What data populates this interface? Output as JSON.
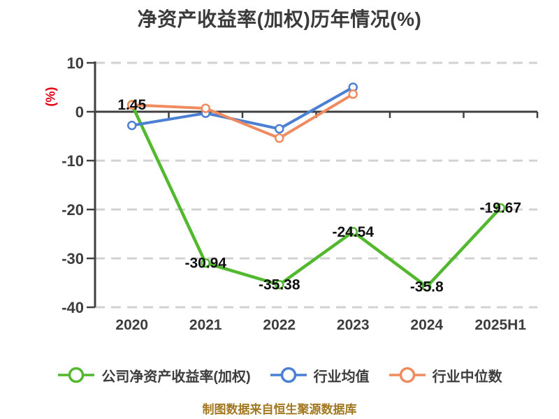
{
  "colors": {
    "background": "#ffffff",
    "title": "#3a3a3a",
    "axis": "#404040",
    "tick_label": "#3d3d3d",
    "grid": "#d2d2d2",
    "data_label": "#111111",
    "y_axis_unit_label": "#e60012",
    "footer": "#a1781f"
  },
  "chart_data": {
    "type": "line",
    "title": "净资产收益率(加权)历年情况(%)",
    "ylabel": "(%)",
    "footer": "制图数据来自恒生聚源数据库",
    "categories": [
      "2020",
      "2021",
      "2022",
      "2023",
      "2024",
      "2025H1"
    ],
    "ylim": [
      -40,
      10
    ],
    "yticks": [
      10,
      0,
      -10,
      -20,
      -30,
      -40
    ],
    "grid": "horizontal-dashed",
    "legend_position": "bottom",
    "series": [
      {
        "name": "公司净资产收益率(加权)",
        "color": "#52b82e",
        "values": [
          1.45,
          -30.94,
          -35.38,
          -24.54,
          -35.8,
          -19.67
        ],
        "labels": [
          "1.45",
          "-30.94",
          "-35.38",
          "-24.54",
          "-35.8",
          "-19.67"
        ],
        "show_labels": true
      },
      {
        "name": "行业均值",
        "color": "#4a7fd4",
        "values": [
          -2.8,
          -0.3,
          -3.5,
          5.0,
          null,
          null
        ],
        "show_labels": false
      },
      {
        "name": "行业中位数",
        "color": "#ef8b5e",
        "values": [
          1.4,
          0.7,
          -5.4,
          3.6,
          null,
          null
        ],
        "show_labels": false
      }
    ]
  }
}
